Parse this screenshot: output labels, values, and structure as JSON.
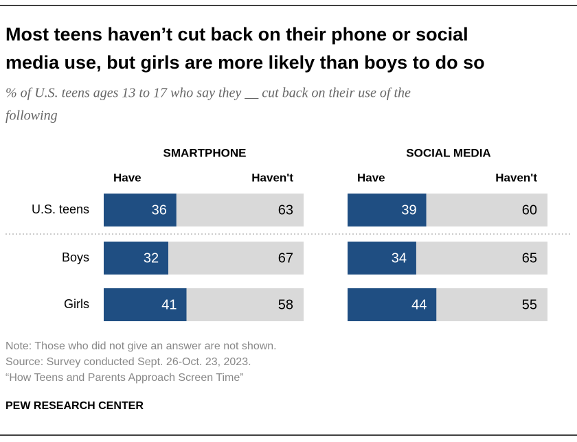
{
  "chart_data": {
    "type": "bar",
    "stacked": true,
    "title": [
      "Most teens haven’t cut back on their phone or social",
      "media use, but girls are more likely than boys to do so"
    ],
    "subtitle": [
      "% of U.S. teens ages 13 to 17 who say they __ cut back on their use of the",
      "following"
    ],
    "categories": [
      "U.S. teens",
      "Boys",
      "Girls"
    ],
    "xlim": [
      0,
      100
    ],
    "panels": [
      {
        "title": "SMARTPHONE",
        "series": [
          {
            "name": "Have",
            "color": "#1f4e82",
            "values": [
              36,
              32,
              41
            ]
          },
          {
            "name": "Haven't",
            "color": "#d9d9d9",
            "values": [
              63,
              67,
              58
            ]
          }
        ]
      },
      {
        "title": "SOCIAL MEDIA",
        "series": [
          {
            "name": "Have",
            "color": "#1f4e82",
            "values": [
              39,
              34,
              44
            ]
          },
          {
            "name": "Haven't",
            "color": "#d9d9d9",
            "values": [
              60,
              65,
              55
            ]
          }
        ]
      }
    ]
  },
  "notes": [
    "Note: Those who did not give an answer are not shown.",
    "Source: Survey conducted Sept. 26-Oct. 23, 2023.",
    "“How Teens and Parents Approach Screen Time”"
  ],
  "credit": "PEW RESEARCH CENTER"
}
